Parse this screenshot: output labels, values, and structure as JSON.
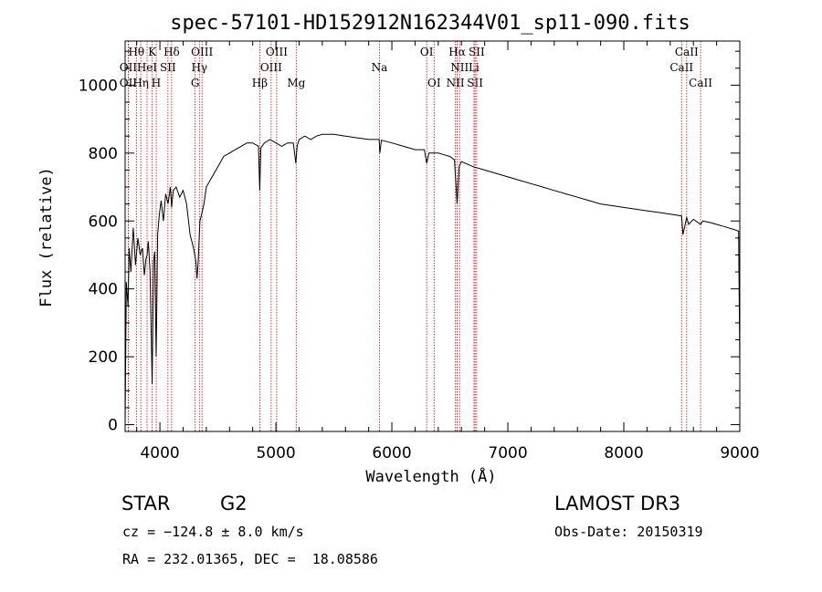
{
  "chart_data": {
    "type": "line",
    "title": "spec-57101-HD152912N162344V01_sp11-090.fits",
    "xlabel": "Wavelength (Å)",
    "ylabel": "Flux (relative)",
    "xlim": [
      3700,
      9000
    ],
    "ylim": [
      -20,
      1130
    ],
    "xticks": [
      4000,
      5000,
      6000,
      7000,
      8000,
      9000
    ],
    "yticks": [
      0,
      200,
      400,
      600,
      800,
      1000
    ],
    "grid": false,
    "series": [
      {
        "x": [
          3700,
          3710,
          3725,
          3735,
          3750,
          3770,
          3790,
          3810,
          3830,
          3850,
          3865,
          3880,
          3890,
          3900,
          3915,
          3933,
          3945,
          3955,
          3968,
          3980,
          3995,
          4010,
          4030,
          4050,
          4070,
          4090,
          4101,
          4115,
          4140,
          4170,
          4200,
          4230,
          4260,
          4290,
          4310,
          4320,
          4330,
          4345,
          4360,
          4380,
          4400,
          4450,
          4500,
          4550,
          4600,
          4650,
          4700,
          4750,
          4800,
          4850,
          4861,
          4870,
          4900,
          4950,
          5000,
          5050,
          5100,
          5150,
          5172,
          5183,
          5200,
          5250,
          5300,
          5350,
          5400,
          5500,
          5600,
          5700,
          5800,
          5890,
          5896,
          5910,
          6000,
          6100,
          6200,
          6280,
          6300,
          6320,
          6400,
          6450,
          6500,
          6540,
          6563,
          6580,
          6600,
          6700,
          6800,
          6900,
          7000,
          7100,
          7200,
          7300,
          7400,
          7500,
          7600,
          7700,
          7800,
          7900,
          8000,
          8100,
          8200,
          8300,
          8400,
          8498,
          8510,
          8542,
          8560,
          8600,
          8662,
          8680,
          8750,
          8800,
          8850,
          8900,
          8950,
          8990,
          9000
        ],
        "y": [
          0,
          420,
          350,
          520,
          450,
          580,
          470,
          550,
          500,
          520,
          440,
          490,
          500,
          540,
          450,
          120,
          480,
          510,
          200,
          560,
          620,
          660,
          600,
          680,
          650,
          700,
          640,
          690,
          700,
          670,
          690,
          650,
          560,
          520,
          480,
          430,
          480,
          600,
          620,
          650,
          700,
          730,
          760,
          790,
          800,
          810,
          820,
          830,
          830,
          820,
          690,
          815,
          830,
          840,
          830,
          820,
          830,
          830,
          770,
          820,
          840,
          850,
          840,
          850,
          855,
          855,
          850,
          845,
          840,
          840,
          800,
          838,
          830,
          820,
          810,
          810,
          770,
          800,
          800,
          795,
          790,
          780,
          650,
          760,
          775,
          760,
          750,
          740,
          730,
          720,
          710,
          700,
          690,
          680,
          670,
          660,
          650,
          645,
          640,
          635,
          630,
          625,
          620,
          615,
          560,
          610,
          590,
          605,
          590,
          600,
          595,
          590,
          585,
          580,
          575,
          570,
          170
        ]
      }
    ],
    "lines": [
      {
        "name": "OII",
        "x": 3727,
        "row": 2
      },
      {
        "name": "OII",
        "x": 3727,
        "row": 3
      },
      {
        "name": "Hθ",
        "x": 3797,
        "row": 1
      },
      {
        "name": "Hη",
        "x": 3835,
        "row": 3
      },
      {
        "name": "HeI",
        "x": 3889,
        "row": 2
      },
      {
        "name": "K",
        "x": 3934,
        "row": 1
      },
      {
        "name": "H",
        "x": 3968,
        "row": 3
      },
      {
        "name": "SII",
        "x": 4069,
        "row": 2
      },
      {
        "name": "Hδ",
        "x": 4101,
        "row": 1
      },
      {
        "name": "OIII",
        "x": 4363,
        "row": 1
      },
      {
        "name": "Hγ",
        "x": 4340,
        "row": 2
      },
      {
        "name": "G",
        "x": 4304,
        "row": 3
      },
      {
        "name": "Hβ",
        "x": 4861,
        "row": 3
      },
      {
        "name": "OIII",
        "x": 4959,
        "row": 2
      },
      {
        "name": "OIII",
        "x": 5007,
        "row": 1
      },
      {
        "name": "Mg",
        "x": 5175,
        "row": 3
      },
      {
        "name": "Na",
        "x": 5893,
        "row": 2
      },
      {
        "name": "OI",
        "x": 6300,
        "row": 1
      },
      {
        "name": "OI",
        "x": 6364,
        "row": 3
      },
      {
        "name": "NII",
        "x": 6548,
        "row": 3
      },
      {
        "name": "Hα",
        "x": 6563,
        "row": 1
      },
      {
        "name": "NII",
        "x": 6584,
        "row": 2
      },
      {
        "name": "SII",
        "x": 6717,
        "row": 3
      },
      {
        "name": "SII",
        "x": 6731,
        "row": 1
      },
      {
        "name": "Li",
        "x": 6708,
        "row": 2
      },
      {
        "name": "CaII",
        "x": 8498,
        "row": 2
      },
      {
        "name": "CaII",
        "x": 8542,
        "row": 1
      },
      {
        "name": "CaII",
        "x": 8662,
        "row": 3
      }
    ],
    "colors": {
      "spectrum": "#000000",
      "line_marker": "#cc0000",
      "frame": "#000000"
    }
  },
  "info": {
    "object_class": "STAR",
    "subclass": "G2",
    "survey": "LAMOST DR3",
    "cz": "cz = −124.8 ± 8.0 km/s",
    "obs_date": "Obs-Date: 20150319",
    "coords": "RA = 232.01365, DEC =  18.08586"
  }
}
